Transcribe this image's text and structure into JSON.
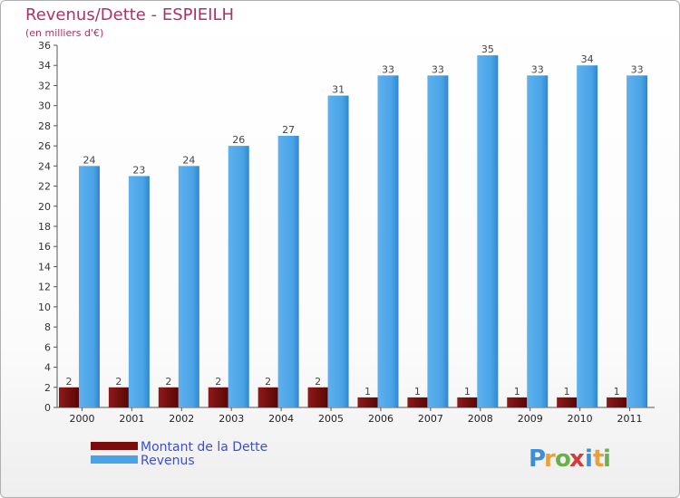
{
  "title": "Revenus/Dette - ESPIEILH",
  "subtitle": "(en milliers d'€)",
  "logo": {
    "letters": [
      "P",
      "r",
      "o",
      "x",
      "i",
      "t",
      "i"
    ]
  },
  "colors": {
    "dette": "#7a0c0c",
    "revenus": "#4aa3e6",
    "title": "#b0306a",
    "legend_text": "#3a4fd6"
  },
  "chart_data": {
    "type": "bar",
    "categories": [
      "2000",
      "2001",
      "2002",
      "2003",
      "2004",
      "2005",
      "2006",
      "2007",
      "2008",
      "2009",
      "2010",
      "2011"
    ],
    "series": [
      {
        "name": "Montant de la Dette",
        "values": [
          2,
          2,
          2,
          2,
          2,
          2,
          1,
          1,
          1,
          1,
          1,
          1
        ]
      },
      {
        "name": "Revenus",
        "values": [
          24,
          23,
          24,
          26,
          27,
          31,
          33,
          33,
          35,
          33,
          34,
          33
        ]
      }
    ],
    "ylim": [
      0,
      36
    ],
    "yticks": [
      0,
      2,
      4,
      6,
      8,
      10,
      12,
      14,
      16,
      18,
      20,
      22,
      24,
      26,
      28,
      30,
      32,
      34,
      36
    ],
    "grid": false,
    "legend_position": "bottom-left"
  }
}
